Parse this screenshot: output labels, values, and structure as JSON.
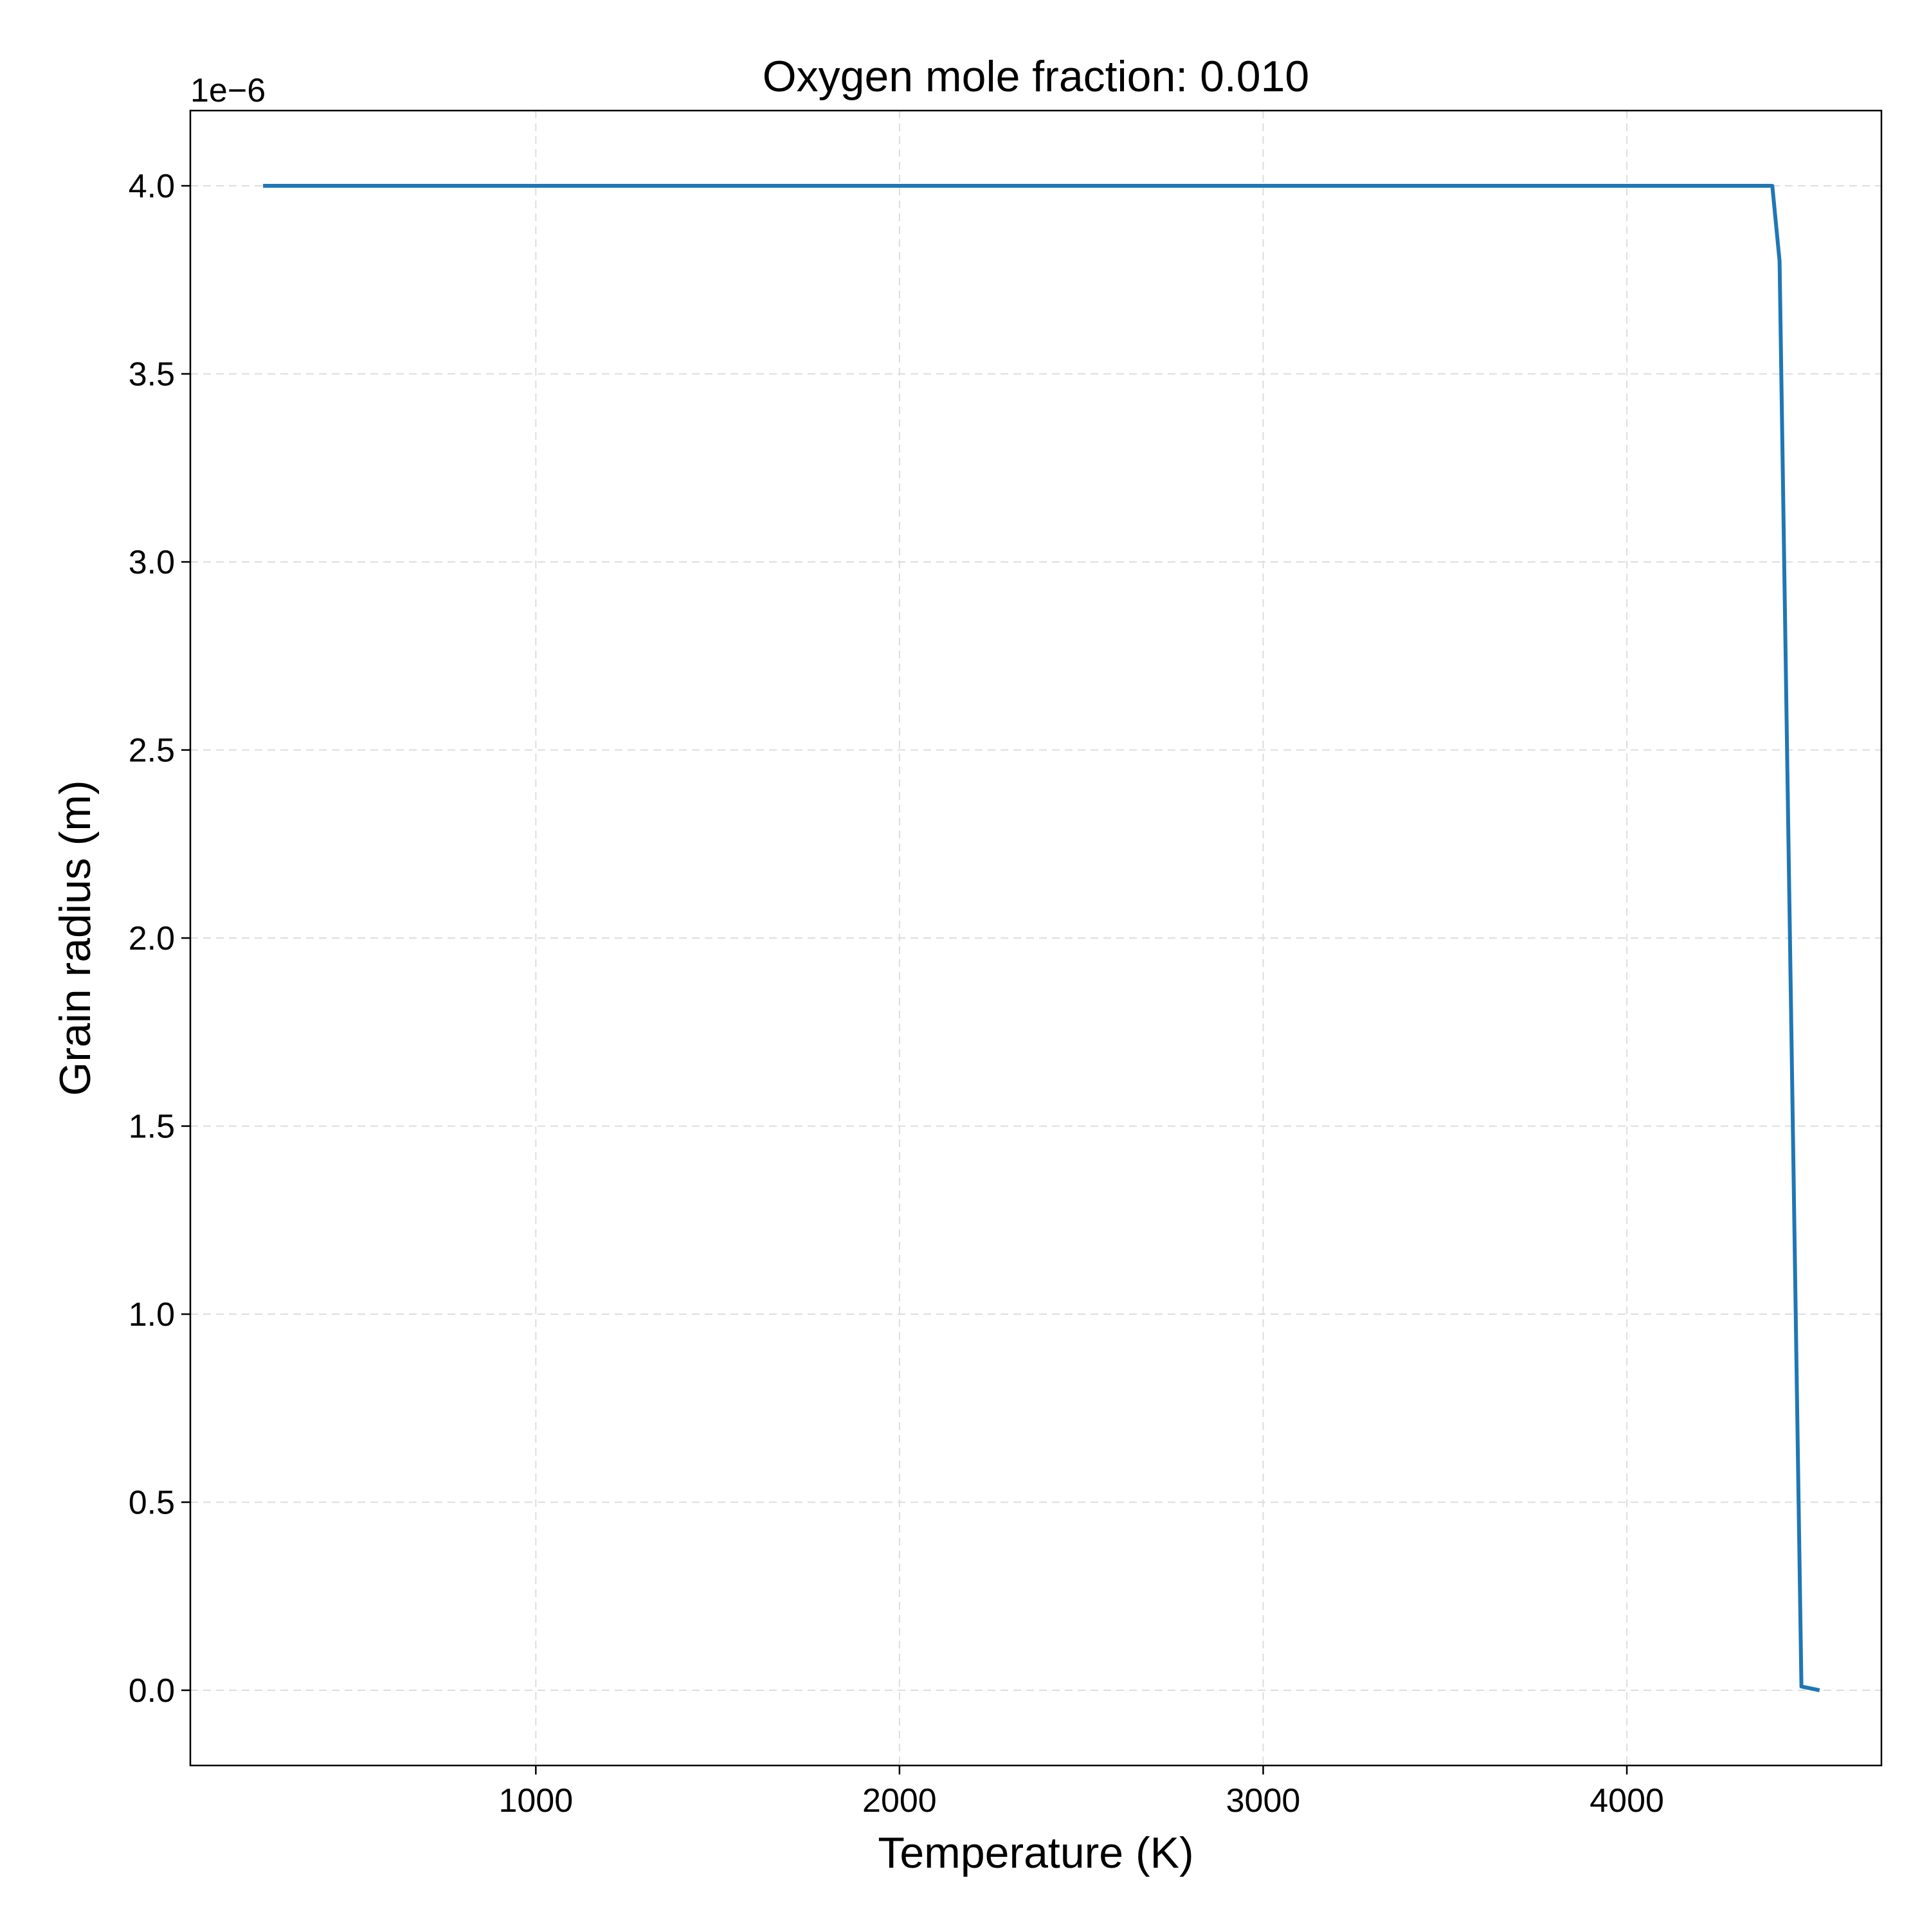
{
  "chart_data": {
    "type": "line",
    "title": "Oxygen mole fraction: 0.010",
    "xlabel": "Temperature (K)",
    "ylabel": "Grain radius (m)",
    "y_offset_text": "1e−6",
    "xlim": [
      50,
      4700
    ],
    "ylim": [
      -0.2,
      4.2
    ],
    "y_scale_factor": 1e-06,
    "x_ticks": [
      1000,
      2000,
      3000,
      4000
    ],
    "x_tick_labels": [
      "1000",
      "2000",
      "3000",
      "4000"
    ],
    "y_ticks": [
      0.0,
      0.5,
      1.0,
      1.5,
      2.0,
      2.5,
      3.0,
      3.5,
      4.0
    ],
    "y_tick_labels": [
      "0.0",
      "0.5",
      "1.0",
      "1.5",
      "2.0",
      "2.5",
      "3.0",
      "3.5",
      "4.0"
    ],
    "grid": true,
    "legend": "none",
    "series": [
      {
        "color": "#1f77b4",
        "x": [
          250,
          500,
          1000,
          1500,
          2000,
          2500,
          3000,
          3500,
          4000,
          4400,
          4420,
          4480,
          4530
        ],
        "y": [
          4.0,
          4.0,
          4.0,
          4.0,
          4.0,
          4.0,
          4.0,
          4.0,
          4.0,
          4.0,
          3.8,
          0.01,
          0.0
        ]
      }
    ]
  }
}
